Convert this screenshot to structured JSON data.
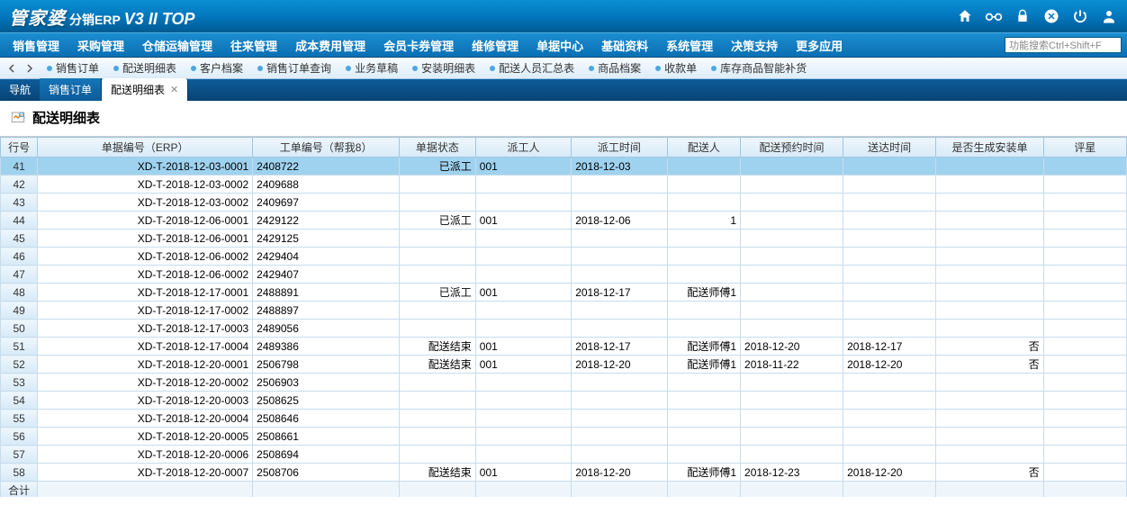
{
  "brand": {
    "main": "管家婆",
    "sub": "分销ERP",
    "ver": "V3 II TOP"
  },
  "search_placeholder": "功能搜索Ctrl+Shift+F",
  "menus": [
    "销售管理",
    "采购管理",
    "仓储运输管理",
    "往来管理",
    "成本费用管理",
    "会员卡券管理",
    "维修管理",
    "单据中心",
    "基础资料",
    "系统管理",
    "决策支持",
    "更多应用"
  ],
  "quicklinks": [
    "销售订单",
    "配送明细表",
    "客户档案",
    "销售订单查询",
    "业务草稿",
    "安装明细表",
    "配送人员汇总表",
    "商品档案",
    "收款单",
    "库存商品智能补货"
  ],
  "tabs": {
    "nav": "导航",
    "items": [
      {
        "label": "销售订单",
        "active": false
      },
      {
        "label": "配送明细表",
        "active": true
      }
    ]
  },
  "page_title": "配送明细表",
  "columns": [
    "行号",
    "单据编号（ERP）",
    "工单编号（帮我8）",
    "单据状态",
    "派工人",
    "派工时间",
    "配送人",
    "配送预约时间",
    "送达时间",
    "是否生成安装单",
    "评星"
  ],
  "footer_label": "合计",
  "rows": [
    {
      "n": "41",
      "erp": "XD-T-2018-12-03-0001",
      "wo": "2408722",
      "stat": "已派工",
      "worker": "001",
      "wtime": "2018-12-03",
      "deliv": "",
      "apt": "",
      "arr": "",
      "gen": "",
      "rate": ""
    },
    {
      "n": "42",
      "erp": "XD-T-2018-12-03-0002",
      "wo": "2409688",
      "stat": "",
      "worker": "",
      "wtime": "",
      "deliv": "",
      "apt": "",
      "arr": "",
      "gen": "",
      "rate": ""
    },
    {
      "n": "43",
      "erp": "XD-T-2018-12-03-0002",
      "wo": "2409697",
      "stat": "",
      "worker": "",
      "wtime": "",
      "deliv": "",
      "apt": "",
      "arr": "",
      "gen": "",
      "rate": ""
    },
    {
      "n": "44",
      "erp": "XD-T-2018-12-06-0001",
      "wo": "2429122",
      "stat": "已派工",
      "worker": "001",
      "wtime": "2018-12-06",
      "deliv": "1",
      "apt": "",
      "arr": "",
      "gen": "",
      "rate": ""
    },
    {
      "n": "45",
      "erp": "XD-T-2018-12-06-0001",
      "wo": "2429125",
      "stat": "",
      "worker": "",
      "wtime": "",
      "deliv": "",
      "apt": "",
      "arr": "",
      "gen": "",
      "rate": ""
    },
    {
      "n": "46",
      "erp": "XD-T-2018-12-06-0002",
      "wo": "2429404",
      "stat": "",
      "worker": "",
      "wtime": "",
      "deliv": "",
      "apt": "",
      "arr": "",
      "gen": "",
      "rate": ""
    },
    {
      "n": "47",
      "erp": "XD-T-2018-12-06-0002",
      "wo": "2429407",
      "stat": "",
      "worker": "",
      "wtime": "",
      "deliv": "",
      "apt": "",
      "arr": "",
      "gen": "",
      "rate": ""
    },
    {
      "n": "48",
      "erp": "XD-T-2018-12-17-0001",
      "wo": "2488891",
      "stat": "已派工",
      "worker": "001",
      "wtime": "2018-12-17",
      "deliv": "配送师傅1",
      "apt": "",
      "arr": "",
      "gen": "",
      "rate": ""
    },
    {
      "n": "49",
      "erp": "XD-T-2018-12-17-0002",
      "wo": "2488897",
      "stat": "",
      "worker": "",
      "wtime": "",
      "deliv": "",
      "apt": "",
      "arr": "",
      "gen": "",
      "rate": ""
    },
    {
      "n": "50",
      "erp": "XD-T-2018-12-17-0003",
      "wo": "2489056",
      "stat": "",
      "worker": "",
      "wtime": "",
      "deliv": "",
      "apt": "",
      "arr": "",
      "gen": "",
      "rate": ""
    },
    {
      "n": "51",
      "erp": "XD-T-2018-12-17-0004",
      "wo": "2489386",
      "stat": "配送结束",
      "worker": "001",
      "wtime": "2018-12-17",
      "deliv": "配送师傅1",
      "apt": "2018-12-20",
      "arr": "2018-12-17",
      "gen": "否",
      "rate": ""
    },
    {
      "n": "52",
      "erp": "XD-T-2018-12-20-0001",
      "wo": "2506798",
      "stat": "配送结束",
      "worker": "001",
      "wtime": "2018-12-20",
      "deliv": "配送师傅1",
      "apt": "2018-11-22",
      "arr": "2018-12-20",
      "gen": "否",
      "rate": ""
    },
    {
      "n": "53",
      "erp": "XD-T-2018-12-20-0002",
      "wo": "2506903",
      "stat": "",
      "worker": "",
      "wtime": "",
      "deliv": "",
      "apt": "",
      "arr": "",
      "gen": "",
      "rate": ""
    },
    {
      "n": "54",
      "erp": "XD-T-2018-12-20-0003",
      "wo": "2508625",
      "stat": "",
      "worker": "",
      "wtime": "",
      "deliv": "",
      "apt": "",
      "arr": "",
      "gen": "",
      "rate": ""
    },
    {
      "n": "55",
      "erp": "XD-T-2018-12-20-0004",
      "wo": "2508646",
      "stat": "",
      "worker": "",
      "wtime": "",
      "deliv": "",
      "apt": "",
      "arr": "",
      "gen": "",
      "rate": ""
    },
    {
      "n": "56",
      "erp": "XD-T-2018-12-20-0005",
      "wo": "2508661",
      "stat": "",
      "worker": "",
      "wtime": "",
      "deliv": "",
      "apt": "",
      "arr": "",
      "gen": "",
      "rate": ""
    },
    {
      "n": "57",
      "erp": "XD-T-2018-12-20-0006",
      "wo": "2508694",
      "stat": "",
      "worker": "",
      "wtime": "",
      "deliv": "",
      "apt": "",
      "arr": "",
      "gen": "",
      "rate": ""
    },
    {
      "n": "58",
      "erp": "XD-T-2018-12-20-0007",
      "wo": "2508706",
      "stat": "配送结束",
      "worker": "001",
      "wtime": "2018-12-20",
      "deliv": "配送师傅1",
      "apt": "2018-12-23",
      "arr": "2018-12-20",
      "gen": "否",
      "rate": ""
    }
  ]
}
